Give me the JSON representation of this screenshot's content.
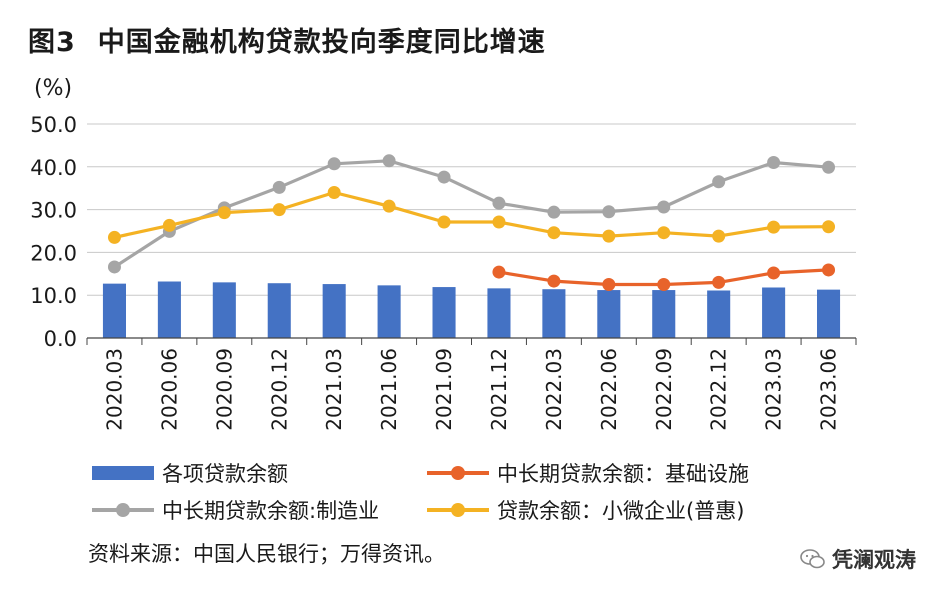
{
  "figure": {
    "number": "图3",
    "title": "中国金融机构贷款投向季度同比增速"
  },
  "source_note": "资料来源：中国人民银行；万得资讯。",
  "watermark": "凭澜观涛",
  "colors": {
    "bar": "#4472C4",
    "infra": "#E8632A",
    "manufacturing": "#A5A5A5",
    "smallbiz": "#F4B223",
    "axis": "#444444",
    "grid": "#c8c8c8"
  },
  "chart_data": {
    "type": "bar",
    "ylabel": "(%)",
    "ylim": [
      0,
      50
    ],
    "yticks": [
      "0.0",
      "10.0",
      "20.0",
      "30.0",
      "40.0",
      "50.0"
    ],
    "categories": [
      "2020.03",
      "2020.06",
      "2020.09",
      "2020.12",
      "2021.03",
      "2021.06",
      "2021.09",
      "2021.12",
      "2022.03",
      "2022.06",
      "2022.09",
      "2022.12",
      "2023.03",
      "2023.06"
    ],
    "grid": true,
    "legend_position": "bottom",
    "series": [
      {
        "name": "各项贷款余额",
        "type": "bar",
        "color_key": "bar",
        "values": [
          12.7,
          13.2,
          13.0,
          12.8,
          12.6,
          12.3,
          11.9,
          11.6,
          11.4,
          11.2,
          11.2,
          11.1,
          11.8,
          11.3
        ]
      },
      {
        "name": "中长期贷款余额：基础设施",
        "type": "line",
        "color_key": "infra",
        "values": [
          null,
          null,
          null,
          null,
          null,
          null,
          null,
          15.4,
          13.3,
          12.5,
          12.5,
          13.0,
          15.2,
          15.9
        ]
      },
      {
        "name": "中长期贷款余额:制造业",
        "type": "line",
        "color_key": "manufacturing",
        "values": [
          16.6,
          24.9,
          30.4,
          35.2,
          40.7,
          41.4,
          37.6,
          31.5,
          29.4,
          29.5,
          30.6,
          36.5,
          41.0,
          39.9
        ]
      },
      {
        "name": "贷款余额：小微企业(普惠)",
        "type": "line",
        "color_key": "smallbiz",
        "values": [
          23.5,
          26.3,
          29.3,
          30.0,
          34.0,
          30.8,
          27.1,
          27.1,
          24.6,
          23.8,
          24.6,
          23.8,
          25.9,
          26.0
        ]
      }
    ]
  }
}
